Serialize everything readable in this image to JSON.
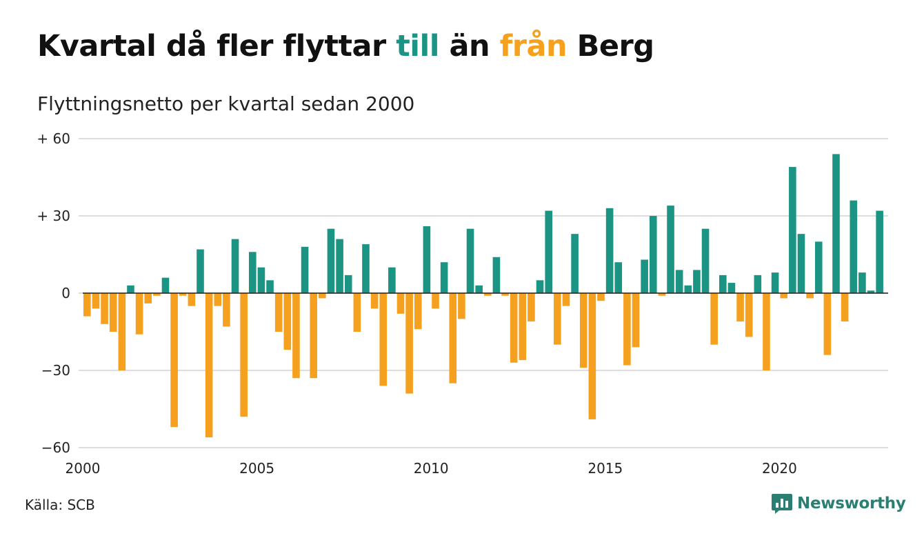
{
  "title": {
    "part1": "Kvartal då fler flyttar ",
    "word_in": "till",
    "part2": " än ",
    "word_out": "från",
    "part3": " Berg"
  },
  "subtitle": "Flyttningsnetto per kvartal sedan 2000",
  "source": "Källa: SCB",
  "logo": {
    "text": "Newsworthy",
    "icon": "newsworthy-chart-bubble-icon"
  },
  "colors": {
    "positive": "#1b9484",
    "negative": "#f5a11f",
    "grid": "#dddddd",
    "logo": "#2a7f72"
  },
  "chart_data": {
    "type": "bar",
    "title": "Kvartal då fler flyttar till än från Berg",
    "subtitle": "Flyttningsnetto per kvartal sedan 2000",
    "x_start": "2000-Q1",
    "x_ticks": [
      "2000",
      "2005",
      "2010",
      "2015",
      "2020"
    ],
    "y_ticks": [
      {
        "value": 60,
        "label": "+ 60"
      },
      {
        "value": 30,
        "label": "+ 30"
      },
      {
        "value": 0,
        "label": "0"
      },
      {
        "value": -30,
        "label": "−30"
      },
      {
        "value": -60,
        "label": "−60"
      }
    ],
    "ylim": [
      -60,
      60
    ],
    "grid": true,
    "series": [
      {
        "values": [
          -9,
          -6,
          -12,
          -15,
          -30,
          3,
          -16,
          -4,
          -1,
          6,
          -52,
          -1,
          -5,
          17,
          -56,
          -5,
          -13,
          21,
          -48,
          16,
          10,
          5,
          -15,
          -22,
          -33,
          18,
          -33,
          -2,
          25,
          21,
          7,
          -15,
          19,
          -6,
          -36,
          10,
          -8,
          -39,
          -14,
          26,
          -6,
          12,
          -35,
          -10,
          25,
          3,
          -1,
          14,
          -1,
          -27,
          -26,
          -11,
          5,
          32,
          -20,
          -5,
          23,
          -29,
          -49,
          -3,
          33,
          12,
          -28,
          -21,
          13,
          30,
          -1,
          34,
          9,
          3,
          9,
          25,
          -20,
          7,
          4,
          -11,
          -17,
          7,
          -30,
          8,
          -2,
          49,
          23,
          -2,
          20,
          -24,
          54,
          -11,
          36,
          8,
          1,
          32
        ]
      }
    ]
  }
}
